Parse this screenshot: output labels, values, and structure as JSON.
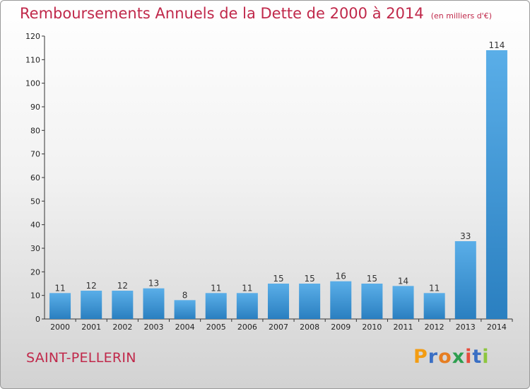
{
  "title": "Remboursements Annuels de la Dette de 2000 à 2014",
  "unit_note": "(en milliers d'€)",
  "city": "SAINT-PELLERIN",
  "logo": {
    "text": "Proxiti",
    "letter_colors": [
      "#f39c12",
      "#3a6fc4",
      "#e67e22",
      "#2e9e4f",
      "#e74c3c",
      "#3a6fc4",
      "#8dc63f"
    ]
  },
  "colors": {
    "title": "#c0284a",
    "bar_top": "#5aaee8",
    "bar_bottom": "#2a7fc0",
    "axis": "#333333",
    "grid": "#cccccc"
  },
  "chart_data": {
    "type": "bar",
    "categories": [
      "2000",
      "2001",
      "2002",
      "2003",
      "2004",
      "2005",
      "2006",
      "2007",
      "2008",
      "2009",
      "2010",
      "2011",
      "2012",
      "2013",
      "2014"
    ],
    "values": [
      11,
      12,
      12,
      13,
      8,
      11,
      11,
      15,
      15,
      16,
      15,
      14,
      11,
      33,
      114
    ],
    "ylim": [
      0,
      120
    ],
    "yticks": [
      0,
      10,
      20,
      30,
      40,
      50,
      60,
      70,
      80,
      90,
      100,
      110,
      120
    ],
    "grid": false,
    "data_labels": true
  }
}
